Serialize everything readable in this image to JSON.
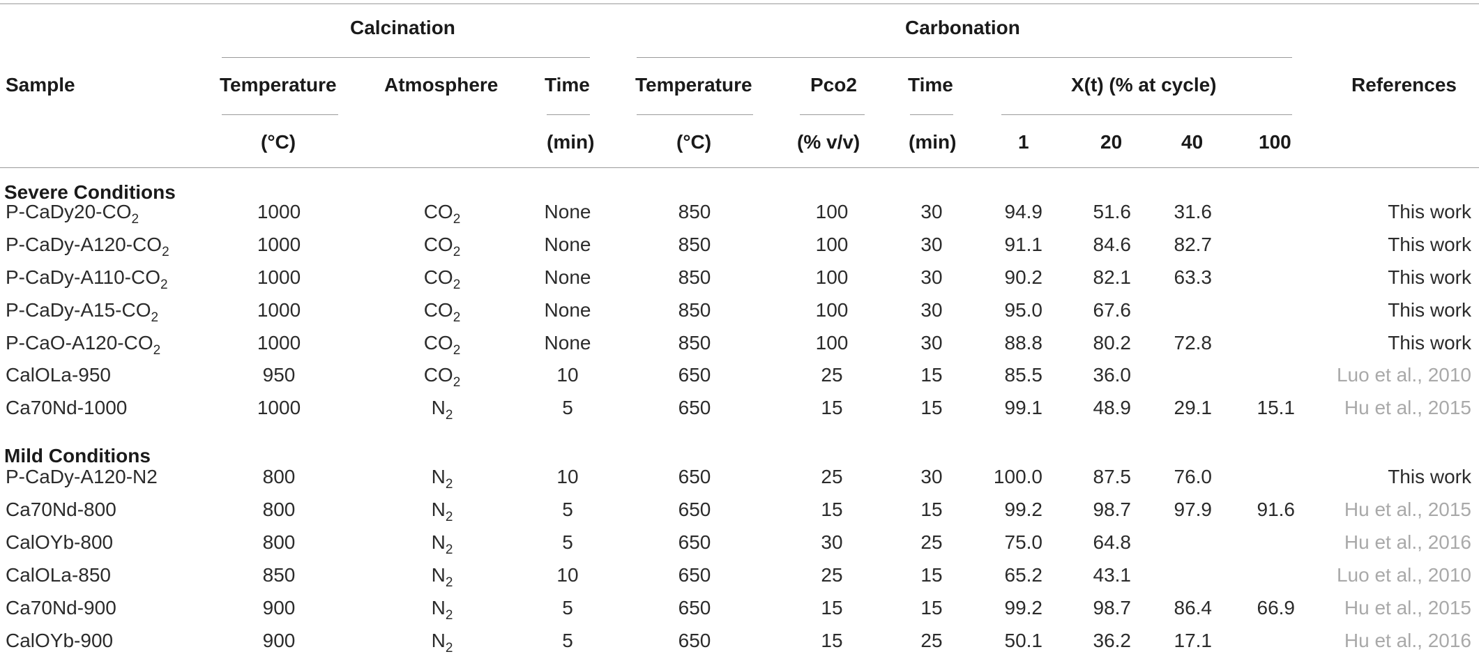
{
  "headers": {
    "sample": "Sample",
    "calcination": "Calcination",
    "carbonation": "Carbonation",
    "references": "References",
    "calc_temperature": "Temperature",
    "calc_atmosphere": "Atmosphere",
    "calc_time": "Time",
    "carb_temperature": "Temperature",
    "carb_pco2": "Pco2",
    "carb_time": "Time",
    "xt": "X(t) (% at cycle)",
    "unit_calc_temp": "(°C)",
    "unit_calc_time": "(min)",
    "unit_carb_temp": "(°C)",
    "unit_pco2": "(% v/v)",
    "unit_carb_time": "(min)",
    "cycle_1": "1",
    "cycle_20": "20",
    "cycle_40": "40",
    "cycle_100": "100"
  },
  "sections": {
    "severe": "Severe Conditions",
    "mild": "Mild Conditions"
  },
  "rows": [
    {
      "sample_main": "P-CaDy20-CO",
      "sample_sub": "2",
      "ctemp": "1000",
      "atm_main": "CO",
      "atm_sub": "2",
      "ctime": "None",
      "btemp": "850",
      "pco2": "100",
      "btime": "30",
      "x1": "94.9",
      "x20": "51.6",
      "x40": "31.6",
      "x100": "",
      "ref": "This work",
      "ref_type": "own"
    },
    {
      "sample_main": "P-CaDy-A120-CO",
      "sample_sub": "2",
      "ctemp": "1000",
      "atm_main": "CO",
      "atm_sub": "2",
      "ctime": "None",
      "btemp": "850",
      "pco2": "100",
      "btime": "30",
      "x1": "91.1",
      "x20": "84.6",
      "x40": "82.7",
      "x100": "",
      "ref": "This work",
      "ref_type": "own"
    },
    {
      "sample_main": "P-CaDy-A110-CO",
      "sample_sub": "2",
      "ctemp": "1000",
      "atm_main": "CO",
      "atm_sub": "2",
      "ctime": "None",
      "btemp": "850",
      "pco2": "100",
      "btime": "30",
      "x1": "90.2",
      "x20": "82.1",
      "x40": "63.3",
      "x100": "",
      "ref": "This work",
      "ref_type": "own"
    },
    {
      "sample_main": "P-CaDy-A15-CO",
      "sample_sub": "2",
      "ctemp": "1000",
      "atm_main": "CO",
      "atm_sub": "2",
      "ctime": "None",
      "btemp": "850",
      "pco2": "100",
      "btime": "30",
      "x1": "95.0",
      "x20": "67.6",
      "x40": "",
      "x100": "",
      "ref": "This work",
      "ref_type": "own"
    },
    {
      "sample_main": "P-CaO-A120-CO",
      "sample_sub": "2",
      "ctemp": "1000",
      "atm_main": "CO",
      "atm_sub": "2",
      "ctime": "None",
      "btemp": "850",
      "pco2": "100",
      "btime": "30",
      "x1": "88.8",
      "x20": "80.2",
      "x40": "72.8",
      "x100": "",
      "ref": "This work",
      "ref_type": "own"
    },
    {
      "sample_main": "CalOLa-950",
      "sample_sub": "",
      "ctemp": "950",
      "atm_main": "CO",
      "atm_sub": "2",
      "ctime": "10",
      "btemp": "650",
      "pco2": "25",
      "btime": "15",
      "x1": "85.5",
      "x20": "36.0",
      "x40": "",
      "x100": "",
      "ref": "Luo et al., 2010",
      "ref_type": "link"
    },
    {
      "sample_main": "Ca70Nd-1000",
      "sample_sub": "",
      "ctemp": "1000",
      "atm_main": "N",
      "atm_sub": "2",
      "ctime": "5",
      "btemp": "650",
      "pco2": "15",
      "btime": "15",
      "x1": "99.1",
      "x20": "48.9",
      "x40": "29.1",
      "x100": "15.1",
      "ref": "Hu et al., 2015",
      "ref_type": "link"
    },
    {
      "sample_main": "P-CaDy-A120-N2",
      "sample_sub": "",
      "ctemp": "800",
      "atm_main": "N",
      "atm_sub": "2",
      "ctime": "10",
      "btemp": "650",
      "pco2": "25",
      "btime": "30",
      "x1": "100.0",
      "x20": "87.5",
      "x40": "76.0",
      "x100": "",
      "ref": "This work",
      "ref_type": "own"
    },
    {
      "sample_main": "Ca70Nd-800",
      "sample_sub": "",
      "ctemp": "800",
      "atm_main": "N",
      "atm_sub": "2",
      "ctime": "5",
      "btemp": "650",
      "pco2": "15",
      "btime": "15",
      "x1": "99.2",
      "x20": "98.7",
      "x40": "97.9",
      "x100": "91.6",
      "ref": "Hu et al., 2015",
      "ref_type": "link"
    },
    {
      "sample_main": "CalOYb-800",
      "sample_sub": "",
      "ctemp": "800",
      "atm_main": "N",
      "atm_sub": "2",
      "ctime": "5",
      "btemp": "650",
      "pco2": "30",
      "btime": "25",
      "x1": "75.0",
      "x20": "64.8",
      "x40": "",
      "x100": "",
      "ref": "Hu et al., 2016",
      "ref_type": "link"
    },
    {
      "sample_main": "CalOLa-850",
      "sample_sub": "",
      "ctemp": "850",
      "atm_main": "N",
      "atm_sub": "2",
      "ctime": "10",
      "btemp": "650",
      "pco2": "25",
      "btime": "15",
      "x1": "65.2",
      "x20": "43.1",
      "x40": "",
      "x100": "",
      "ref": "Luo et al., 2010",
      "ref_type": "link"
    },
    {
      "sample_main": "Ca70Nd-900",
      "sample_sub": "",
      "ctemp": "900",
      "atm_main": "N",
      "atm_sub": "2",
      "ctime": "5",
      "btemp": "650",
      "pco2": "15",
      "btime": "15",
      "x1": "99.2",
      "x20": "98.7",
      "x40": "86.4",
      "x100": "66.9",
      "ref": "Hu et al., 2015",
      "ref_type": "link"
    },
    {
      "sample_main": "CalOYb-900",
      "sample_sub": "",
      "ctemp": "900",
      "atm_main": "N",
      "atm_sub": "2",
      "ctime": "5",
      "btemp": "650",
      "pco2": "15",
      "btime": "25",
      "x1": "50.1",
      "x20": "36.2",
      "x40": "17.1",
      "x100": "",
      "ref": "Hu et al., 2016",
      "ref_type": "link"
    }
  ]
}
